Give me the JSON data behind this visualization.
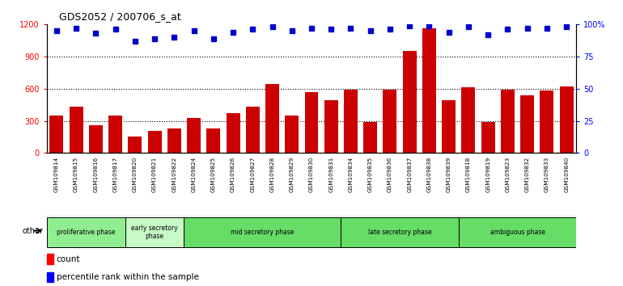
{
  "title": "GDS2052 / 200706_s_at",
  "categories": [
    "GSM109814",
    "GSM109815",
    "GSM109816",
    "GSM109817",
    "GSM109820",
    "GSM109821",
    "GSM109822",
    "GSM109824",
    "GSM109825",
    "GSM109826",
    "GSM109827",
    "GSM109828",
    "GSM109829",
    "GSM109830",
    "GSM109831",
    "GSM109834",
    "GSM109835",
    "GSM109836",
    "GSM109837",
    "GSM109838",
    "GSM109839",
    "GSM109818",
    "GSM109819",
    "GSM109823",
    "GSM109832",
    "GSM109833",
    "GSM109840"
  ],
  "counts": [
    350,
    430,
    260,
    350,
    155,
    210,
    230,
    330,
    230,
    370,
    430,
    640,
    350,
    570,
    490,
    590,
    290,
    590,
    950,
    1160,
    490,
    610,
    290,
    590,
    540,
    580,
    620
  ],
  "percentiles": [
    95,
    97,
    93,
    96,
    87,
    89,
    90,
    95,
    89,
    94,
    96,
    98,
    95,
    97,
    96,
    97,
    95,
    96,
    99,
    99,
    94,
    98,
    92,
    96,
    97,
    97,
    98
  ],
  "phases": [
    {
      "label": "proliferative phase",
      "start": 0,
      "end": 4,
      "color": "#90ee90"
    },
    {
      "label": "early secretory\nphase",
      "start": 4,
      "end": 7,
      "color": "#c8f0c8"
    },
    {
      "label": "mid secretory phase",
      "start": 7,
      "end": 15,
      "color": "#66dd66"
    },
    {
      "label": "late secretory phase",
      "start": 15,
      "end": 21,
      "color": "#66dd66"
    },
    {
      "label": "ambiguous phase",
      "start": 21,
      "end": 27,
      "color": "#66dd66"
    }
  ],
  "bar_color": "#cc0000",
  "dot_color": "#0000cc",
  "ylim_left": [
    0,
    1200
  ],
  "ylim_right": [
    0,
    100
  ],
  "yticks_left": [
    0,
    300,
    600,
    900,
    1200
  ],
  "yticks_right": [
    0,
    25,
    50,
    75,
    100
  ],
  "background_color": "#ffffff",
  "tick_bg_color": "#d8d8d8",
  "other_label": "other"
}
